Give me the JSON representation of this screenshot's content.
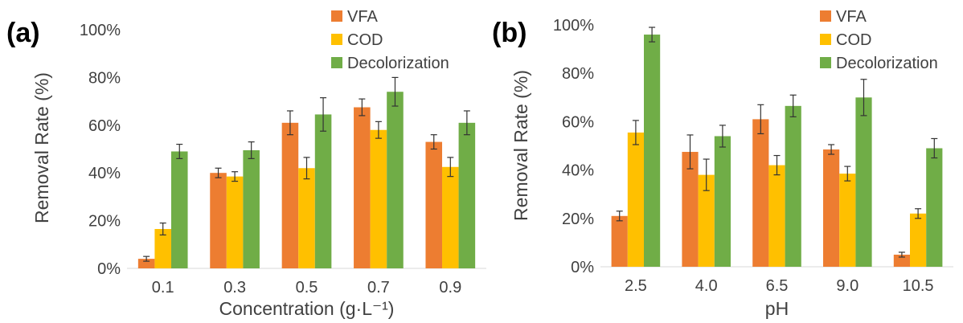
{
  "colors": {
    "VFA": "#ED7D31",
    "COD": "#FFC000",
    "Decolorization": "#70AD47"
  },
  "chart_data": [
    {
      "type": "bar",
      "panel_label": "(a)",
      "xlabel": "Concentration (g·L⁻¹)",
      "ylabel": "Removal Rate (%)",
      "ylim": [
        0,
        100
      ],
      "yticks": [
        "0%",
        "20%",
        "40%",
        "60%",
        "80%",
        "100%"
      ],
      "categories": [
        "0.1",
        "0.3",
        "0.5",
        "0.7",
        "0.9"
      ],
      "legend_position": "top-right",
      "grid": false,
      "series": [
        {
          "name": "VFA",
          "values": [
            4,
            40,
            61,
            67.5,
            53
          ],
          "errors": [
            1,
            2,
            5,
            3.5,
            3
          ]
        },
        {
          "name": "COD",
          "values": [
            16.5,
            38.5,
            42,
            58,
            42.5
          ],
          "errors": [
            2.5,
            2,
            4.5,
            3.5,
            4
          ]
        },
        {
          "name": "Decolorization",
          "values": [
            49,
            49.5,
            64.5,
            74,
            61
          ],
          "errors": [
            3,
            3.5,
            7,
            6,
            5
          ]
        }
      ]
    },
    {
      "type": "bar",
      "panel_label": "(b)",
      "xlabel": "pH",
      "ylabel": "Removal Rate (%)",
      "ylim": [
        0,
        100
      ],
      "yticks": [
        "0%",
        "20%",
        "40%",
        "60%",
        "80%",
        "100%"
      ],
      "categories": [
        "2.5",
        "4.0",
        "6.5",
        "9.0",
        "10.5"
      ],
      "legend_position": "top-right",
      "grid": false,
      "series": [
        {
          "name": "VFA",
          "values": [
            21,
            47.5,
            61,
            48.5,
            5
          ],
          "errors": [
            2,
            7,
            6,
            2,
            1
          ]
        },
        {
          "name": "COD",
          "values": [
            55.5,
            38,
            42,
            38.5,
            22
          ],
          "errors": [
            5,
            6.5,
            4,
            3,
            2
          ]
        },
        {
          "name": "Decolorization",
          "values": [
            96,
            54,
            66.5,
            70,
            49
          ],
          "errors": [
            3,
            4.5,
            4.5,
            7.5,
            4
          ]
        }
      ]
    }
  ]
}
